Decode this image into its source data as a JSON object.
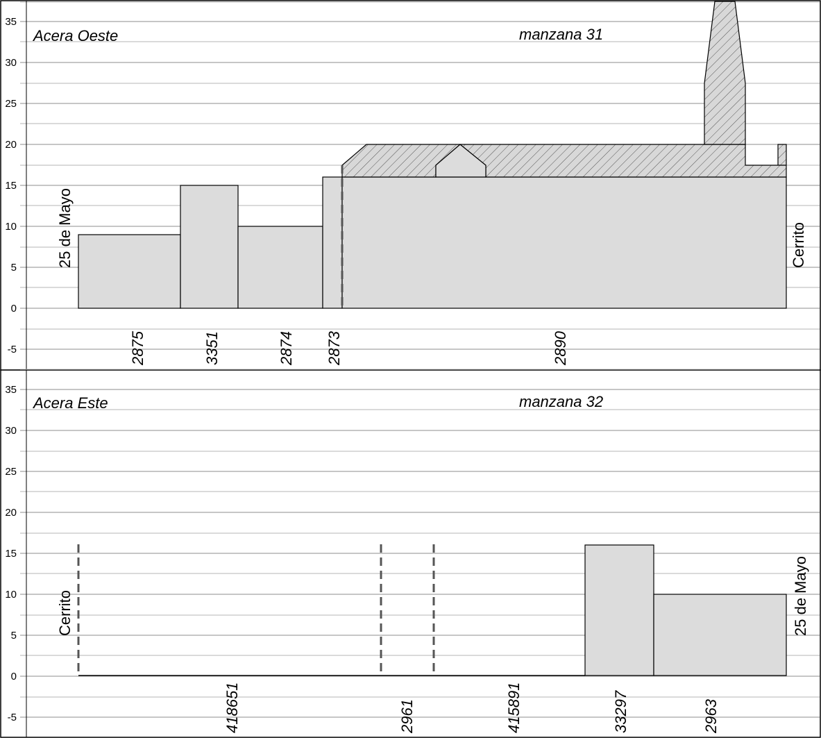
{
  "panels": [
    {
      "side_label": "Acera Oeste",
      "block_label": "manzana 31",
      "left_street": "25 de Mayo",
      "right_street": "Cerrito",
      "y_ticks": [
        "35",
        "30",
        "25",
        "20",
        "15",
        "10",
        "5",
        "0",
        "-5"
      ],
      "lots": [
        "2875",
        "3351",
        "2874",
        "2873",
        "2890"
      ]
    },
    {
      "side_label": "Acera Este",
      "block_label": "manzana 32",
      "left_street": "Cerrito",
      "right_street": "25 de Mayo",
      "y_ticks": [
        "35",
        "30",
        "25",
        "20",
        "15",
        "10",
        "5",
        "0",
        "-5"
      ],
      "lots": [
        "418651",
        "2961",
        "415891",
        "33297",
        "2963"
      ]
    }
  ],
  "chart_data": {
    "type": "other",
    "panels": [
      {
        "side": "Acera Oeste",
        "block": "manzana 31",
        "y_range": [
          -7.5,
          37.5
        ],
        "lots": [
          "2875",
          "3351",
          "2874",
          "2873",
          "2890"
        ],
        "building_heights": [
          9,
          15,
          10,
          16,
          16
        ],
        "upper_levels": [
          17.5,
          20
        ],
        "tower_top": 37.5
      },
      {
        "side": "Acera Este",
        "block": "manzana 32",
        "y_range": [
          -7.5,
          37.5
        ],
        "lots": [
          "418651",
          "2961",
          "415891",
          "33297",
          "2963"
        ],
        "building_heights": [
          0,
          0,
          0,
          16,
          10
        ]
      }
    ]
  }
}
